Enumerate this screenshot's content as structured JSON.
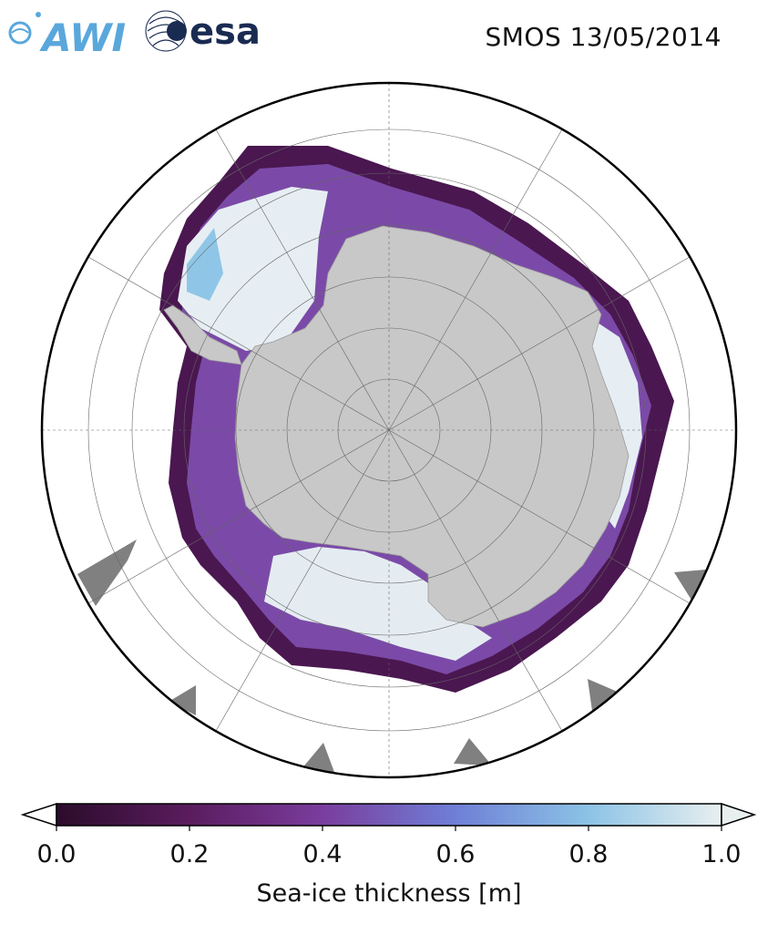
{
  "header": {
    "title": "SMOS 13/05/2014",
    "logos": [
      {
        "name": "AWI",
        "text": "AWI",
        "color": "#5aa7dc"
      },
      {
        "name": "ESA",
        "text": "esa",
        "color": "#1a2b52"
      }
    ]
  },
  "map": {
    "projection": "south-polar-stereographic",
    "region": "Antarctica",
    "land_color": "#c8c8c8",
    "landmass_pole_gray": "#808080",
    "grid": true
  },
  "colorbar": {
    "label": "Sea-ice thickness [m]",
    "ticks": [
      "0.0",
      "0.2",
      "0.4",
      "0.6",
      "0.8",
      "1.0"
    ],
    "vmin": 0.0,
    "vmax": 1.0,
    "extend": "both",
    "colormap": [
      "#2b0c2b",
      "#5a1c5e",
      "#7a3d9e",
      "#6f7fd6",
      "#8cc3e6",
      "#e8efef"
    ]
  }
}
